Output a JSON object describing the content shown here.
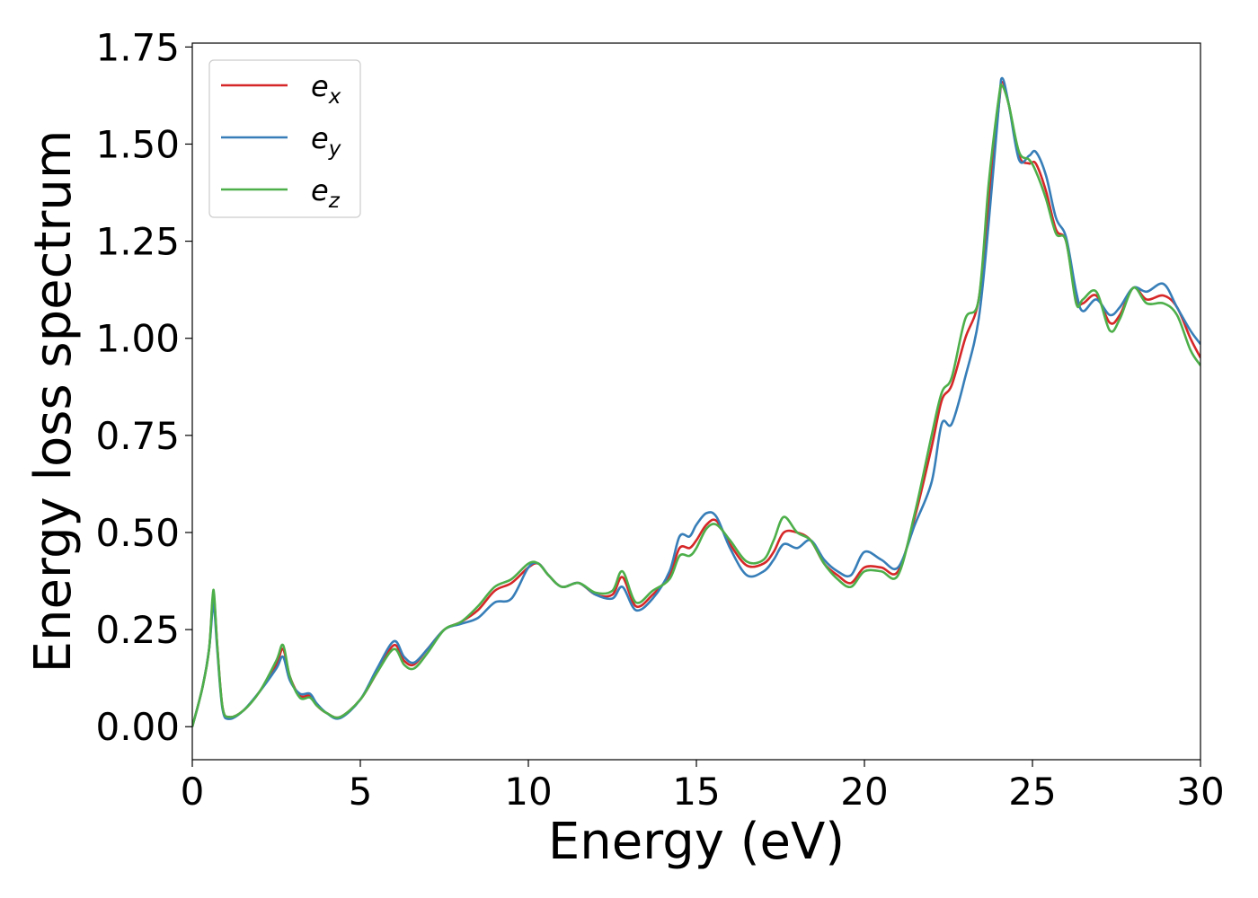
{
  "chart_data": {
    "type": "line",
    "title": "",
    "xlabel": "Energy (eV)",
    "ylabel": "Energy loss spectrum",
    "xlim": [
      0,
      30
    ],
    "ylim": [
      -0.085,
      1.76
    ],
    "xticks": [
      0,
      5,
      10,
      15,
      20,
      25,
      30
    ],
    "yticks": [
      0.0,
      0.25,
      0.5,
      0.75,
      1.0,
      1.25,
      1.5,
      1.75
    ],
    "xtick_labels": [
      "0",
      "5",
      "10",
      "15",
      "20",
      "25",
      "30"
    ],
    "ytick_labels": [
      "0.00",
      "0.25",
      "0.50",
      "0.75",
      "1.00",
      "1.25",
      "1.50",
      "1.75"
    ],
    "grid": false,
    "legend_position": "top-left",
    "x": [
      0.0,
      0.3,
      0.5,
      0.6,
      0.65,
      0.75,
      0.9,
      1.1,
      1.5,
      2.0,
      2.5,
      2.7,
      2.9,
      3.2,
      3.5,
      3.7,
      4.0,
      4.4,
      5.0,
      5.5,
      6.0,
      6.3,
      6.6,
      7.0,
      7.5,
      8.0,
      8.5,
      9.0,
      9.5,
      10.0,
      10.3,
      10.6,
      11.0,
      11.5,
      12.0,
      12.5,
      12.8,
      13.2,
      13.7,
      14.2,
      14.5,
      14.8,
      15.0,
      15.3,
      15.6,
      16.0,
      16.5,
      17.0,
      17.3,
      17.6,
      18.0,
      18.4,
      18.8,
      19.2,
      19.6,
      20.0,
      20.5,
      21.0,
      21.5,
      22.0,
      22.3,
      22.6,
      23.0,
      23.4,
      23.7,
      24.0,
      24.1,
      24.3,
      24.6,
      24.9,
      25.1,
      25.4,
      25.7,
      26.0,
      26.3,
      26.5,
      26.9,
      27.3,
      27.6,
      28.0,
      28.4,
      28.9,
      29.3,
      29.7,
      30.0
    ],
    "series": [
      {
        "name": "e",
        "subscript": "x",
        "color": "#d62728",
        "values": [
          0.0,
          0.1,
          0.2,
          0.32,
          0.33,
          0.2,
          0.05,
          0.025,
          0.04,
          0.09,
          0.16,
          0.2,
          0.13,
          0.08,
          0.08,
          0.055,
          0.035,
          0.025,
          0.07,
          0.14,
          0.21,
          0.17,
          0.16,
          0.2,
          0.25,
          0.27,
          0.3,
          0.35,
          0.37,
          0.41,
          0.42,
          0.39,
          0.36,
          0.37,
          0.34,
          0.34,
          0.385,
          0.31,
          0.34,
          0.39,
          0.46,
          0.46,
          0.48,
          0.52,
          0.53,
          0.47,
          0.415,
          0.42,
          0.45,
          0.5,
          0.5,
          0.48,
          0.42,
          0.39,
          0.37,
          0.41,
          0.41,
          0.4,
          0.54,
          0.72,
          0.84,
          0.88,
          1.0,
          1.1,
          1.35,
          1.6,
          1.66,
          1.6,
          1.47,
          1.45,
          1.45,
          1.38,
          1.28,
          1.25,
          1.1,
          1.09,
          1.11,
          1.04,
          1.06,
          1.13,
          1.1,
          1.11,
          1.08,
          1.0,
          0.95
        ]
      },
      {
        "name": "e",
        "subscript": "y",
        "color": "#377eb8",
        "values": [
          0.0,
          0.1,
          0.2,
          0.3,
          0.31,
          0.19,
          0.045,
          0.02,
          0.04,
          0.09,
          0.15,
          0.18,
          0.12,
          0.085,
          0.085,
          0.06,
          0.035,
          0.022,
          0.07,
          0.15,
          0.22,
          0.18,
          0.165,
          0.2,
          0.25,
          0.265,
          0.28,
          0.32,
          0.33,
          0.41,
          0.42,
          0.39,
          0.36,
          0.37,
          0.34,
          0.33,
          0.36,
          0.3,
          0.33,
          0.4,
          0.49,
          0.49,
          0.52,
          0.55,
          0.54,
          0.46,
          0.39,
          0.4,
          0.43,
          0.47,
          0.46,
          0.48,
          0.43,
          0.4,
          0.39,
          0.45,
          0.43,
          0.41,
          0.52,
          0.63,
          0.78,
          0.78,
          0.9,
          1.05,
          1.3,
          1.6,
          1.67,
          1.6,
          1.46,
          1.47,
          1.48,
          1.42,
          1.31,
          1.26,
          1.12,
          1.07,
          1.1,
          1.06,
          1.08,
          1.13,
          1.12,
          1.14,
          1.08,
          1.02,
          0.985
        ]
      },
      {
        "name": "e",
        "subscript": "z",
        "color": "#4daf4a",
        "values": [
          0.0,
          0.1,
          0.2,
          0.33,
          0.34,
          0.2,
          0.05,
          0.025,
          0.04,
          0.09,
          0.17,
          0.21,
          0.13,
          0.075,
          0.075,
          0.055,
          0.035,
          0.025,
          0.07,
          0.14,
          0.2,
          0.16,
          0.15,
          0.19,
          0.25,
          0.27,
          0.31,
          0.36,
          0.38,
          0.42,
          0.42,
          0.39,
          0.36,
          0.37,
          0.345,
          0.35,
          0.4,
          0.32,
          0.35,
          0.38,
          0.44,
          0.44,
          0.46,
          0.51,
          0.52,
          0.48,
          0.425,
          0.43,
          0.48,
          0.54,
          0.5,
          0.48,
          0.42,
          0.38,
          0.36,
          0.4,
          0.4,
          0.39,
          0.55,
          0.75,
          0.86,
          0.9,
          1.05,
          1.1,
          1.4,
          1.62,
          1.65,
          1.6,
          1.48,
          1.46,
          1.43,
          1.36,
          1.27,
          1.25,
          1.09,
          1.1,
          1.12,
          1.02,
          1.05,
          1.13,
          1.09,
          1.09,
          1.06,
          0.97,
          0.93
        ]
      }
    ]
  }
}
